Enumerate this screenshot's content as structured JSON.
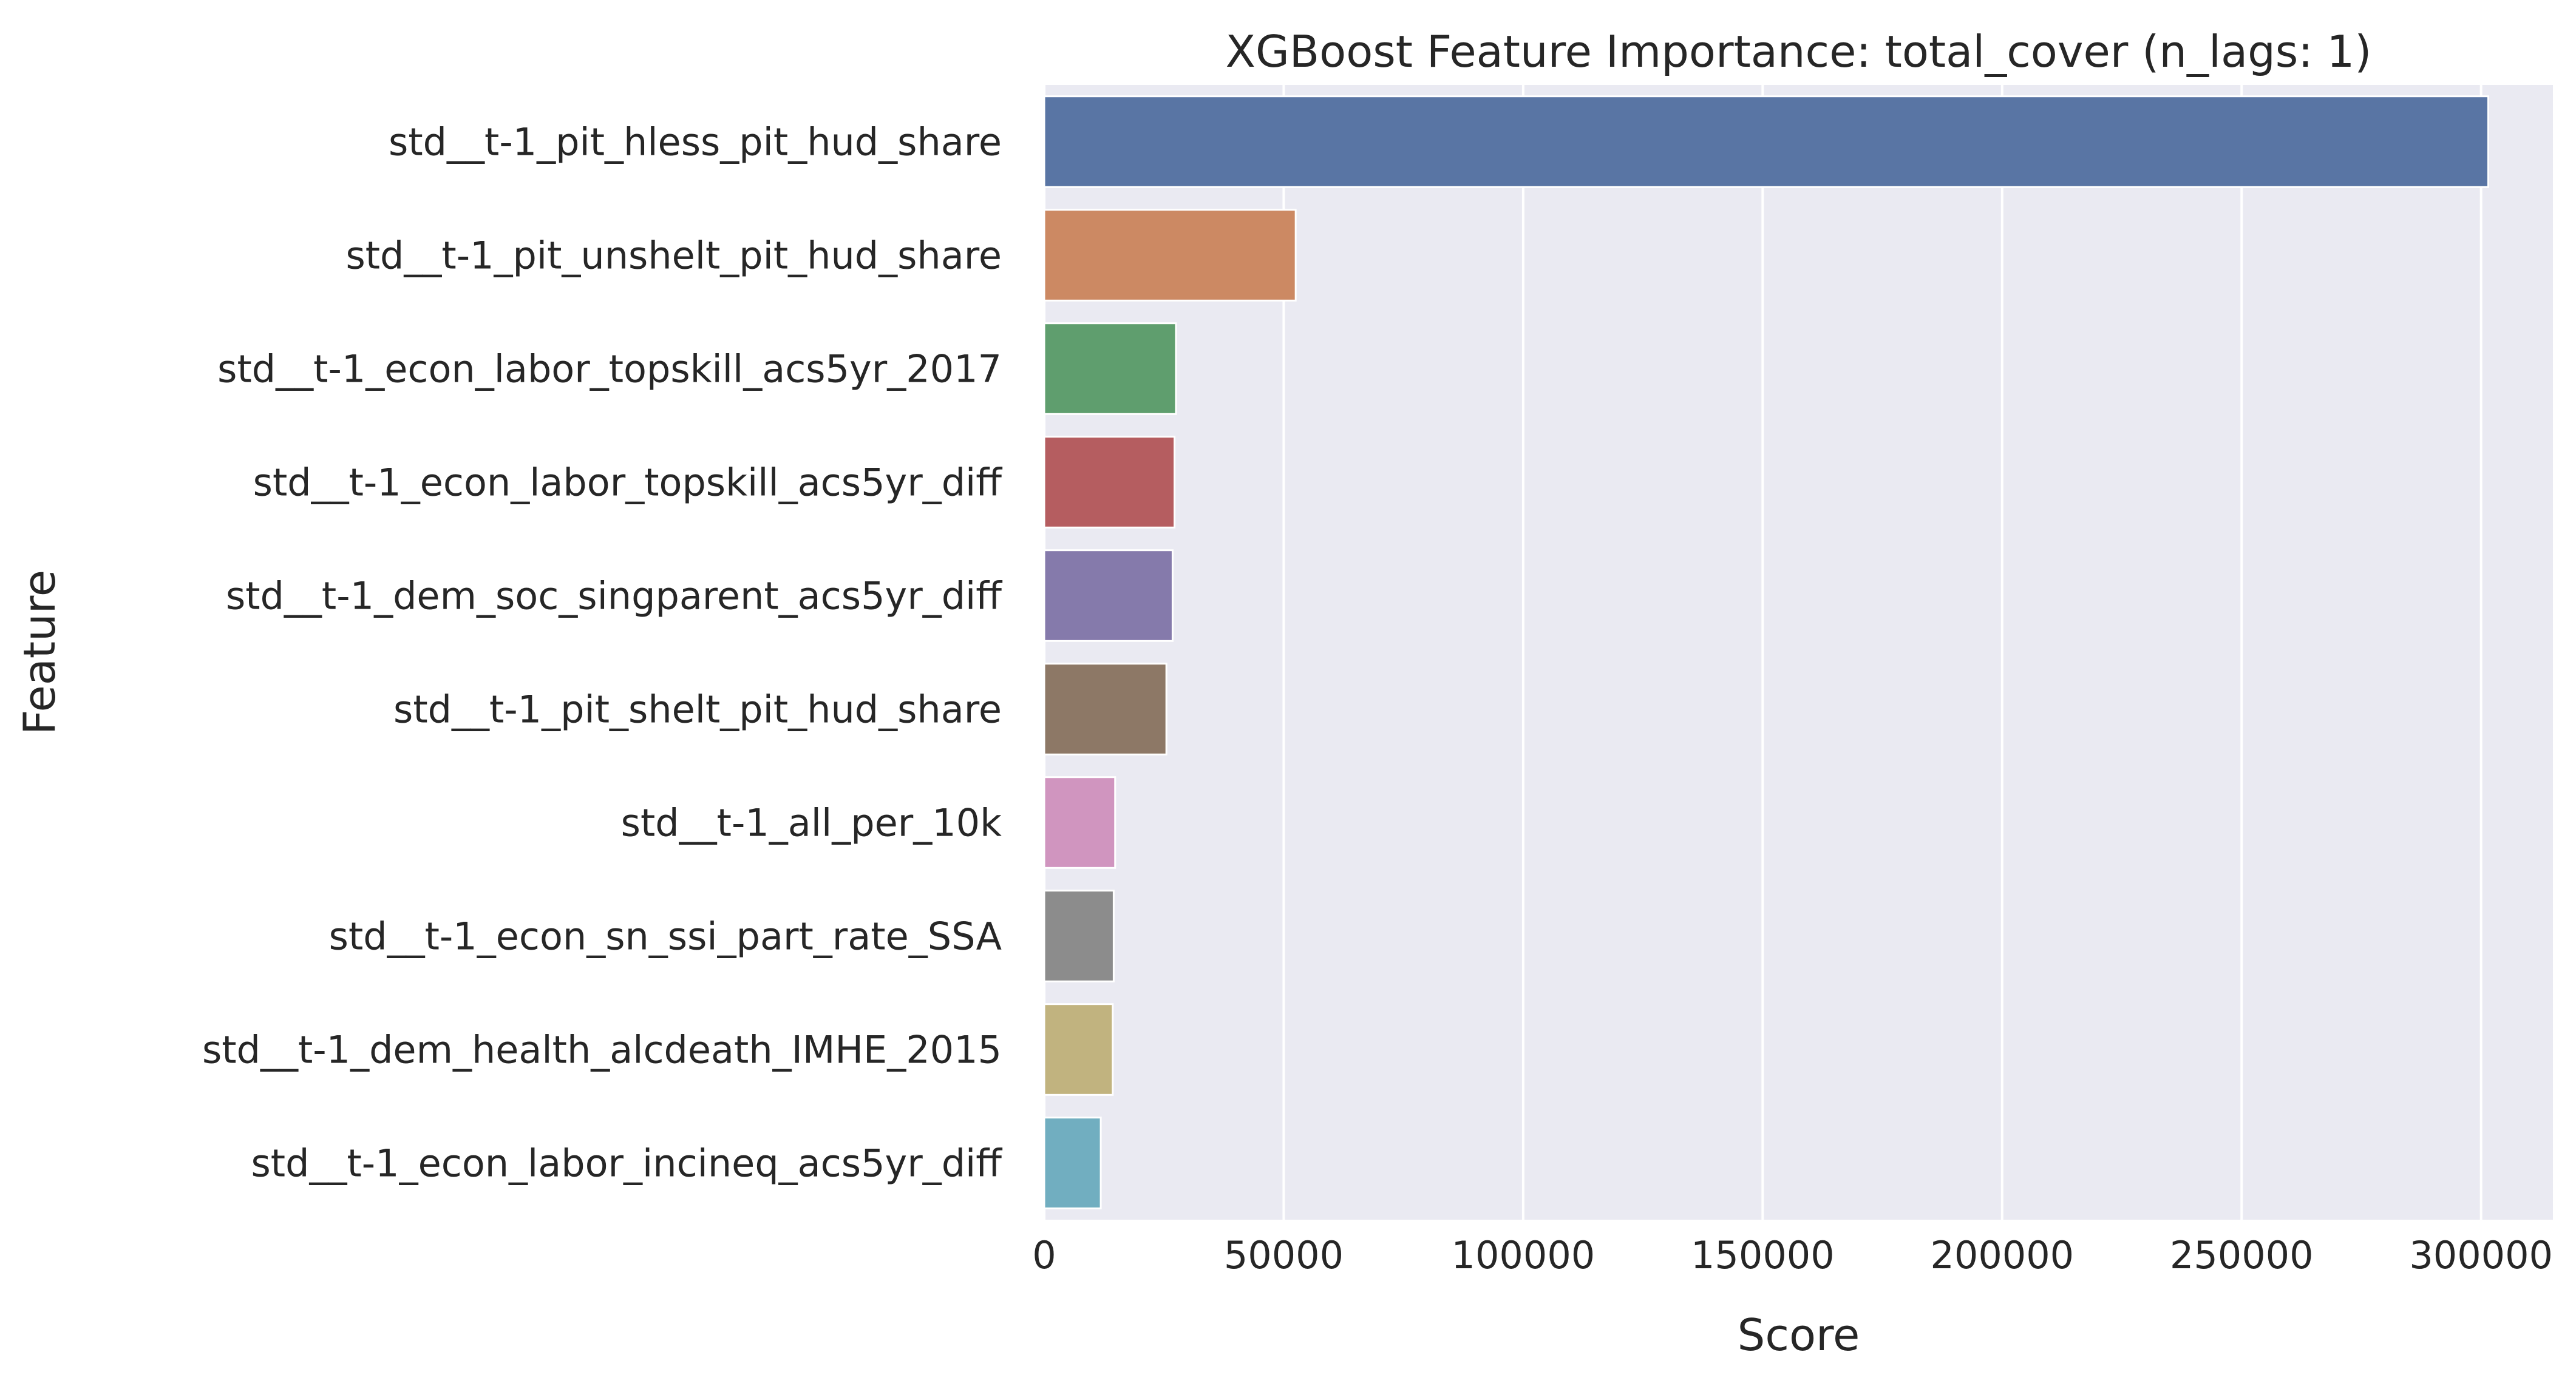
{
  "chart_data": {
    "type": "bar",
    "orientation": "horizontal",
    "title": "XGBoost Feature Importance: total_cover (n_lags: 1)",
    "xlabel": "Score",
    "ylabel": "Feature",
    "xlim": [
      0,
      315000
    ],
    "xticks": [
      0,
      50000,
      100000,
      150000,
      200000,
      250000,
      300000
    ],
    "grid": true,
    "legend": "none",
    "categories": [
      "std__t-1_pit_hless_pit_hud_share",
      "std__t-1_pit_unshelt_pit_hud_share",
      "std__t-1_econ_labor_topskill_acs5yr_2017",
      "std__t-1_econ_labor_topskill_acs5yr_diff",
      "std__t-1_dem_soc_singparent_acs5yr_diff",
      "std__t-1_pit_shelt_pit_hud_share",
      "std__t-1_all_per_10k",
      "std__t-1_econ_sn_ssi_part_rate_SSA",
      "std__t-1_dem_health_alcdeath_IMHE_2015",
      "std__t-1_econ_labor_incineq_acs5yr_diff"
    ],
    "values": [
      301500,
      52500,
      27500,
      27200,
      26800,
      25500,
      14800,
      14500,
      14300,
      11800
    ],
    "colors": [
      "#5975a4",
      "#cc8963",
      "#5f9e6e",
      "#b55d60",
      "#857aab",
      "#8d7866",
      "#d095bf",
      "#8c8c8c",
      "#c1b37f",
      "#71aec0"
    ],
    "plot_background": "#eaeaf2",
    "grid_color": "#ffffff"
  }
}
